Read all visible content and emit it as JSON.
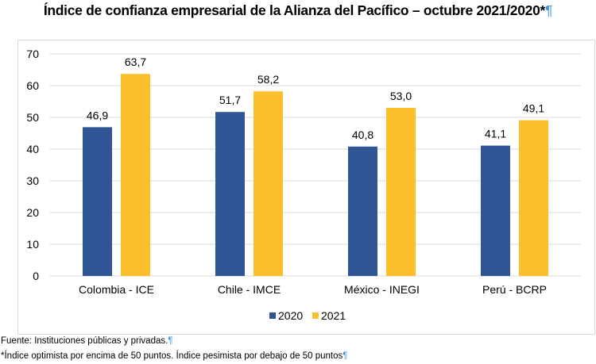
{
  "title": "Índice de confianza empresarial de la Alianza del Pacífico – octubre 2021/2020*",
  "pilcrow": "¶",
  "footnotes": [
    "Fuente: Instituciones públicas y privadas.",
    "*Índice optimista por encima de 50 puntos. Índice pesimista por debajo de 50 puntos"
  ],
  "chart_data": {
    "type": "bar",
    "title": "Índice de confianza empresarial de la Alianza del Pacífico – octubre 2021/2020*",
    "xlabel": "",
    "ylabel": "",
    "ylim": [
      0,
      70
    ],
    "yticks": [
      0,
      10,
      20,
      30,
      40,
      50,
      60,
      70
    ],
    "ytick_labels": [
      "0",
      "10",
      "20",
      "30",
      "40",
      "50",
      "60",
      "70"
    ],
    "grid": true,
    "legend_position": "bottom",
    "categories": [
      "Colombia - ICE",
      "Chile - IMCE",
      "México - INEGI",
      "Perú - BCRP"
    ],
    "series": [
      {
        "name": "2020",
        "color": "#2F5597",
        "values": [
          46.9,
          51.7,
          40.8,
          41.1
        ],
        "labels": [
          "46,9",
          "51,7",
          "40,8",
          "41,1"
        ]
      },
      {
        "name": "2021",
        "color": "#FBBF2D",
        "values": [
          63.7,
          58.2,
          53.0,
          49.1
        ],
        "labels": [
          "63,7",
          "58,2",
          "53,0",
          "49,1"
        ]
      }
    ]
  }
}
